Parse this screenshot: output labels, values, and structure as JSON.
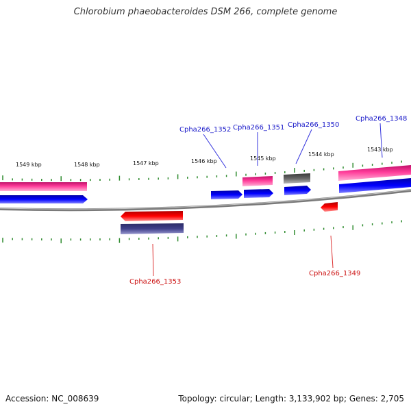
{
  "title": "Chlorobium phaeobacteroides DSM 266, complete genome",
  "footer": {
    "accession": "Accession: NC_008639",
    "stats": "Topology: circular; Length: 3,133,902 bp; Genes: 2,705"
  },
  "colors": {
    "backbone": "#808080",
    "tick": "#2e8b2e",
    "forward_label": "#1515c8",
    "reverse_label": "#cc1111",
    "gene_red": "#ff0000",
    "gene_blue": "#0000ee",
    "gene_pink": "#ee2a8a",
    "gene_gray": "#606060",
    "gene_navy": "#3c3c80"
  },
  "ticks": [
    {
      "label": "1549 kbp"
    },
    {
      "label": "1548 kbp"
    },
    {
      "label": "1547 kbp"
    },
    {
      "label": "1546 kbp"
    },
    {
      "label": "1545 kbp"
    },
    {
      "label": "1544 kbp"
    },
    {
      "label": "1543 kbp"
    }
  ],
  "gene_labels": [
    {
      "text": "Cpha266_1352",
      "strand": "forward"
    },
    {
      "text": "Cpha266_1351",
      "strand": "forward"
    },
    {
      "text": "Cpha266_1350",
      "strand": "forward"
    },
    {
      "text": "Cpha266_1348",
      "strand": "forward"
    },
    {
      "text": "Cpha266_1353",
      "strand": "reverse"
    },
    {
      "text": "Cpha266_1349",
      "strand": "reverse"
    }
  ]
}
